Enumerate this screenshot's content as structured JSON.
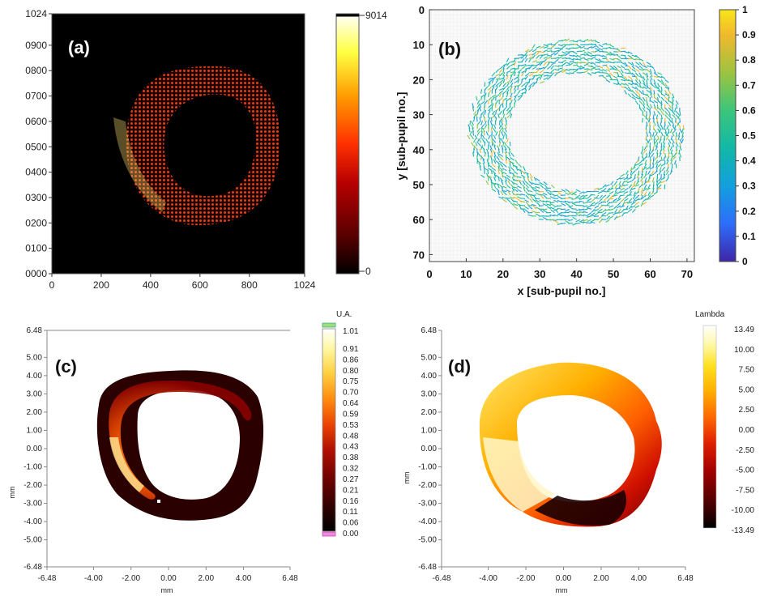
{
  "panels": {
    "a": {
      "label": "(a)",
      "chart_data": {
        "type": "heatmap",
        "x_ticks": [
          "0",
          "200",
          "400",
          "600",
          "800",
          "1024"
        ],
        "y_ticks": [
          "0000",
          "0100",
          "0200",
          "0300",
          "0400",
          "0500",
          "0600",
          "0700",
          "0800",
          "0900",
          "1024"
        ],
        "xlim": [
          0,
          1024
        ],
        "ylim": [
          0,
          1024
        ],
        "colorbar": {
          "min_label": "0",
          "max_label": "9014",
          "min": 0,
          "max": 9014
        },
        "colormap": [
          "#000000",
          "#5a0000",
          "#b80000",
          "#ff3000",
          "#ff9a00",
          "#ffff40",
          "#ffffff"
        ]
      }
    },
    "b": {
      "label": "(b)",
      "chart_data": {
        "type": "scatter",
        "xlabel": "x [sub-pupil no.]",
        "ylabel": "y [sub-pupil no.]",
        "x_ticks": [
          "0",
          "10",
          "20",
          "30",
          "40",
          "50",
          "60",
          "70"
        ],
        "y_ticks": [
          "0",
          "10",
          "20",
          "30",
          "40",
          "50",
          "60",
          "70"
        ],
        "xlim": [
          0,
          72
        ],
        "ylim": [
          0,
          72
        ],
        "colorbar": {
          "ticks": [
            "0",
            "0.1",
            "0.2",
            "0.3",
            "0.4",
            "0.5",
            "0.6",
            "0.7",
            "0.8",
            "0.9",
            "1"
          ],
          "min": 0,
          "max": 1
        },
        "colormap": [
          "#3e26a8",
          "#2d6dfb",
          "#139fde",
          "#12b8a7",
          "#3cc57b",
          "#9dc340",
          "#f1b82d",
          "#f9e619"
        ]
      }
    },
    "c": {
      "label": "(c)",
      "chart_data": {
        "type": "heatmap",
        "unit_label": "U.A.",
        "xlabel": "mm",
        "ylabel": "mm",
        "x_ticks": [
          "-6.48",
          "-4.00",
          "-2.00",
          "0.00",
          "2.00",
          "4.00",
          "6.48"
        ],
        "y_ticks": [
          "6.48",
          "5.00",
          "4.00",
          "3.00",
          "2.00",
          "1.00",
          "0.00",
          "-1.00",
          "-2.00",
          "-3.00",
          "-4.00",
          "-5.00",
          "-6.48"
        ],
        "xlim": [
          -6.48,
          6.48
        ],
        "ylim": [
          -6.48,
          6.48
        ],
        "colorbar": {
          "ticks": [
            "1.01",
            "0.91",
            "0.86",
            "0.80",
            "0.75",
            "0.70",
            "0.64",
            "0.59",
            "0.53",
            "0.48",
            "0.43",
            "0.38",
            "0.32",
            "0.27",
            "0.21",
            "0.16",
            "0.11",
            "0.06",
            "0.00"
          ],
          "min": 0,
          "max": 1.01
        },
        "colormap": [
          "#000000",
          "#300000",
          "#6a0000",
          "#b01000",
          "#e84000",
          "#ff8a10",
          "#ffd040",
          "#fff7a0",
          "#ffffff"
        ]
      }
    },
    "d": {
      "label": "(d)",
      "chart_data": {
        "type": "heatmap",
        "unit_label": "Lambda",
        "xlabel": "mm",
        "ylabel": "mm",
        "x_ticks": [
          "-6.48",
          "-4.00",
          "-2.00",
          "0.00",
          "2.00",
          "4.00",
          "6.48"
        ],
        "y_ticks": [
          "6.48",
          "5.00",
          "4.00",
          "3.00",
          "2.00",
          "1.00",
          "0.00",
          "-1.00",
          "-2.00",
          "-3.00",
          "-4.00",
          "-5.00",
          "-6.48"
        ],
        "xlim": [
          -6.48,
          6.48
        ],
        "ylim": [
          -6.48,
          6.48
        ],
        "colorbar": {
          "ticks": [
            "13.49",
            "10.00",
            "7.50",
            "5.00",
            "2.50",
            "0.00",
            "-2.50",
            "-5.00",
            "-7.50",
            "-10.00",
            "-13.49"
          ],
          "min": -13.49,
          "max": 13.49
        },
        "colormap": [
          "#000000",
          "#4a0000",
          "#a00000",
          "#e02000",
          "#ff6a00",
          "#ffb000",
          "#ffe020",
          "#fff8a0",
          "#ffffff"
        ]
      }
    }
  }
}
